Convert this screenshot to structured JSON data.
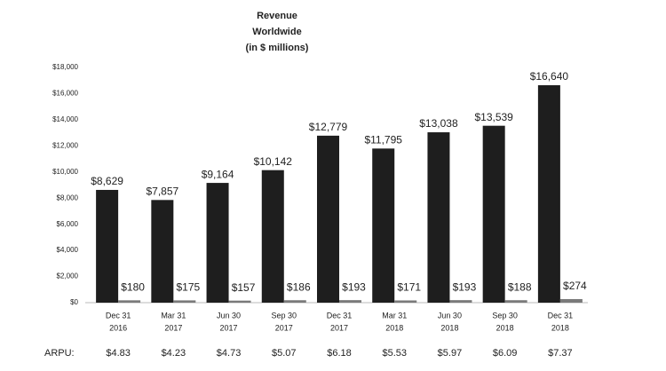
{
  "chart_data": {
    "type": "bar",
    "title": [
      "Revenue",
      "Worldwide",
      "(in $ millions)"
    ],
    "categories": [
      [
        "Dec 31",
        "2016"
      ],
      [
        "Mar 31",
        "2017"
      ],
      [
        "Jun 30",
        "2017"
      ],
      [
        "Sep 30",
        "2017"
      ],
      [
        "Dec 31",
        "2017"
      ],
      [
        "Mar 31",
        "2018"
      ],
      [
        "Jun 30",
        "2018"
      ],
      [
        "Sep 30",
        "2018"
      ],
      [
        "Dec 31",
        "2018"
      ]
    ],
    "series": [
      {
        "color": "#1e1e1e",
        "values": [
          8629,
          7857,
          9164,
          10142,
          12779,
          11795,
          13038,
          13539,
          16640
        ],
        "value_labels": [
          "$8,629",
          "$7,857",
          "$9,164",
          "$10,142",
          "$12,779",
          "$11,795",
          "$13,038",
          "$13,539",
          "$16,640"
        ]
      },
      {
        "color": "#7a7a7a",
        "values": [
          180,
          175,
          157,
          186,
          193,
          171,
          193,
          188,
          274
        ],
        "value_labels": [
          "$180",
          "$175",
          "$157",
          "$186",
          "$193",
          "$171",
          "$193",
          "$188",
          "$274"
        ]
      }
    ],
    "ylim": [
      0,
      18000
    ],
    "yticks": [
      {
        "value": 0,
        "label": "$0"
      },
      {
        "value": 2000,
        "label": "$2,000"
      },
      {
        "value": 4000,
        "label": "$4,000"
      },
      {
        "value": 6000,
        "label": "$6,000"
      },
      {
        "value": 8000,
        "label": "$8,000"
      },
      {
        "value": 10000,
        "label": "$10,000"
      },
      {
        "value": 12000,
        "label": "$12,000"
      },
      {
        "value": 14000,
        "label": "$14,000"
      },
      {
        "value": 16000,
        "label": "$16,000"
      },
      {
        "value": 18000,
        "label": "$18,000"
      }
    ],
    "grid": false,
    "arpu": {
      "label": "ARPU:",
      "values": [
        "$4.83",
        "$4.23",
        "$4.73",
        "$5.07",
        "$6.18",
        "$5.53",
        "$5.97",
        "$6.09",
        "$7.37"
      ]
    }
  }
}
